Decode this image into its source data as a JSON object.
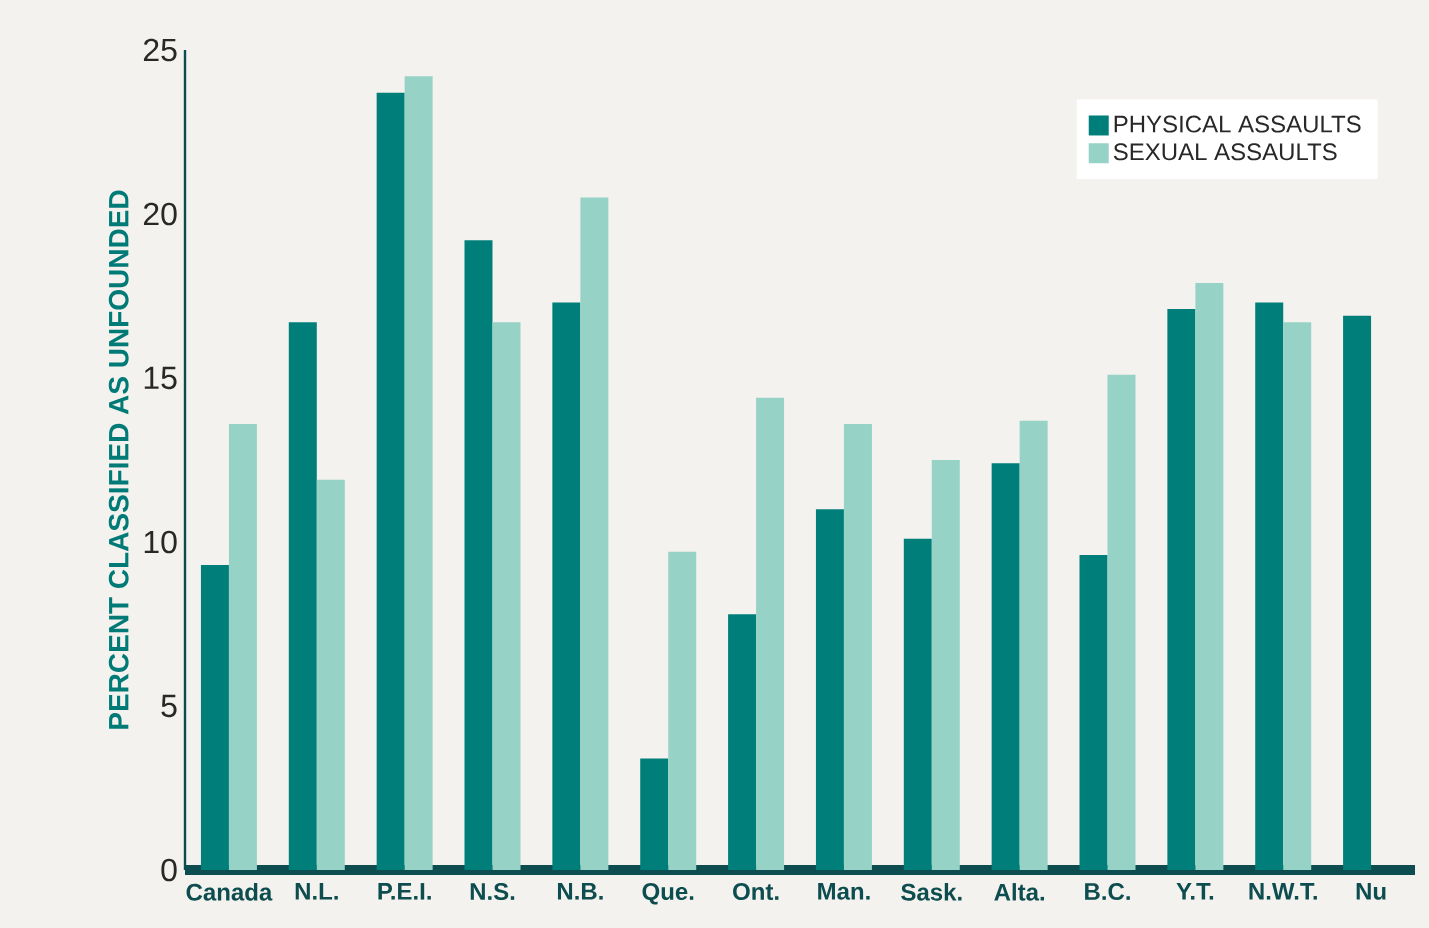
{
  "chart_data": {
    "type": "bar",
    "ylabel": "PERCENT CLASSIFIED AS UNFOUNDED",
    "categories": [
      "Canada",
      "N.L.",
      "P.E.I.",
      "N.S.",
      "N.B.",
      "Que.",
      "Ont.",
      "Man.",
      "Sask.",
      "Alta.",
      "B.C.",
      "Y.T.",
      "N.W.T.",
      "Nu"
    ],
    "series": [
      {
        "name": "PHYSICAL ASSAULTS",
        "color": "#007f7a",
        "values": [
          9.3,
          16.7,
          23.7,
          19.2,
          17.3,
          3.4,
          7.8,
          11.0,
          10.1,
          12.4,
          9.6,
          17.1,
          17.3,
          16.9
        ]
      },
      {
        "name": "SEXUAL ASSAULTS",
        "color": "#96d3c6",
        "values": [
          13.6,
          11.9,
          24.2,
          16.7,
          20.5,
          9.7,
          14.4,
          13.6,
          12.5,
          13.7,
          15.1,
          17.9,
          16.7,
          null
        ]
      }
    ],
    "ylim": [
      0,
      25
    ],
    "yticks": [
      0,
      5,
      10,
      15,
      20,
      25
    ],
    "legend": "top right",
    "grid": false
  }
}
